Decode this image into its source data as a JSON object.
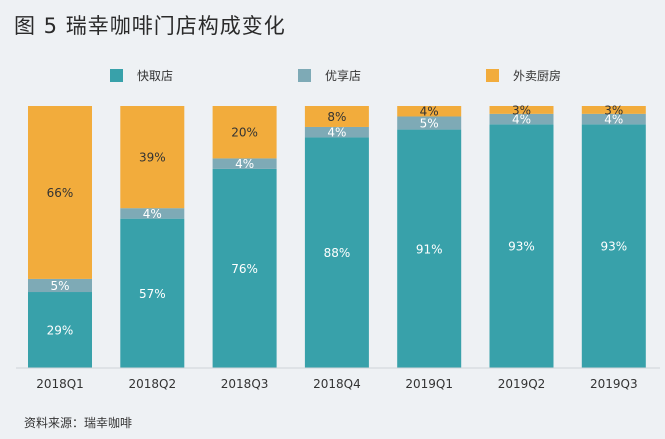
{
  "title": "图 5  瑞幸咖啡门店构成变化",
  "source": "资料来源：瑞幸咖啡",
  "chart_data": {
    "type": "bar",
    "stacked": true,
    "percent_stacked": true,
    "categories": [
      "2018Q1",
      "2018Q2",
      "2018Q3",
      "2018Q4",
      "2019Q1",
      "2019Q2",
      "2019Q3"
    ],
    "series": [
      {
        "name": "快取店",
        "color": "#38a1aa",
        "label_color": "#ffffff",
        "values": [
          29,
          57,
          76,
          88,
          91,
          93,
          93
        ]
      },
      {
        "name": "优享店",
        "color": "#7eaab6",
        "label_color": "#ffffff",
        "values": [
          5,
          4,
          4,
          4,
          5,
          4,
          4
        ]
      },
      {
        "name": "外卖厨房",
        "color": "#f2ac3c",
        "label_color": "#333333",
        "values": [
          66,
          39,
          20,
          8,
          4,
          3,
          3
        ]
      }
    ],
    "value_suffix": "%",
    "ylim": [
      0,
      100
    ],
    "legend_position": "top",
    "grid": false
  }
}
